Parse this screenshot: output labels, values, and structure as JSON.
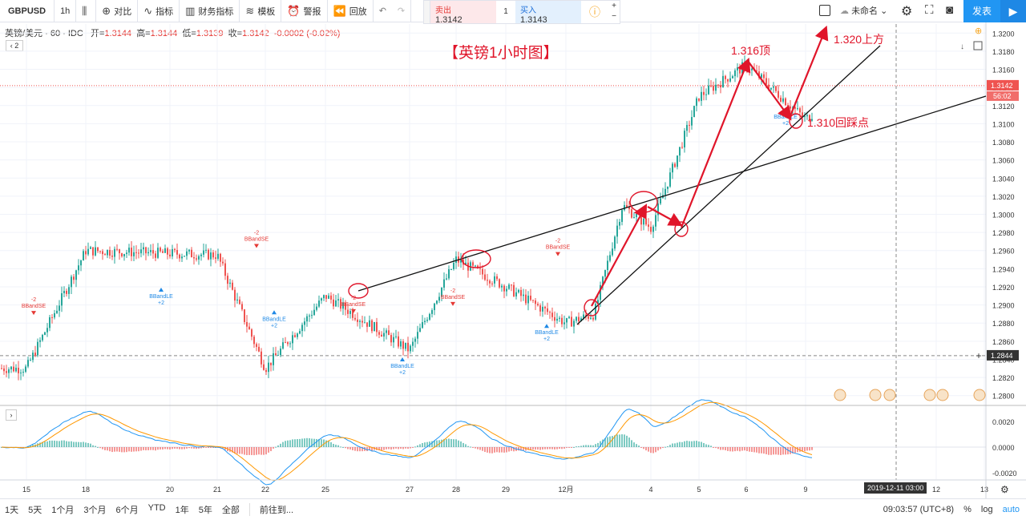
{
  "toolbar": {
    "symbol": "GBPUSD",
    "interval": "1h",
    "compare": "对比",
    "indicators": "指标",
    "financials": "财务指标",
    "templates": "模板",
    "alert": "警报",
    "replay": "回放",
    "sell_label": "卖出",
    "sell_price": "1.3142",
    "qty": "1",
    "buy_label": "买入",
    "buy_price": "1.3143",
    "layout_name": "未命名",
    "publish": "发表"
  },
  "legend": {
    "name": "英镑/美元 · 60 · IDC",
    "open_label": "开=",
    "open": "1.3144",
    "high_label": "高=",
    "high": "1.3144",
    "low_label": "低=",
    "low": "1.3139",
    "close_label": "收=",
    "close": "1.3142",
    "change": "-0.0002 (-0.02%)",
    "collapse": "2"
  },
  "annotations": {
    "title": "【英镑1小时图】",
    "top": "1.316顶",
    "target": "1.320上方",
    "pullback": "1.310回踩点"
  },
  "price_badges": {
    "last": "1.3142",
    "countdown": "56:02",
    "cross": "1.2844",
    "date_label": "2019-12-11",
    "time_label": "03:00"
  },
  "signals": [
    {
      "type": "BBandSE",
      "n": "-2"
    },
    {
      "type": "BBandLE",
      "n": "+2"
    }
  ],
  "bottombar": {
    "ranges": [
      "1天",
      "5天",
      "1个月",
      "3个月",
      "6个月",
      "YTD",
      "1年",
      "5年",
      "全部"
    ],
    "goto": "前往到...",
    "clock": "09:03:57 (UTC+8)",
    "pct": "%",
    "log": "log",
    "auto": "auto"
  },
  "colors": {
    "up": "#26a69a",
    "down": "#ef5350",
    "annotation": "#e0152a",
    "trend": "#111111",
    "macd": "#2196f3",
    "signal": "#ff9800"
  },
  "chart_data": {
    "type": "candlestick",
    "title": "【英镑1小时图】",
    "y_axis": {
      "ticks": [
        "1.2800",
        "1.2820",
        "1.2840",
        "1.2860",
        "1.2880",
        "1.2900",
        "1.2920",
        "1.2940",
        "1.2960",
        "1.2980",
        "1.3000",
        "1.3020",
        "1.3040",
        "1.3060",
        "1.3080",
        "1.3100",
        "1.3120",
        "1.3140",
        "1.3160",
        "1.3180",
        "1.3200"
      ],
      "range": [
        1.279,
        1.321
      ]
    },
    "x_axis": {
      "ticks": [
        "15",
        "18",
        "20",
        "21",
        "22",
        "25",
        "27",
        "28",
        "29",
        "12月",
        "4",
        "5",
        "6",
        "9",
        "12",
        "13"
      ]
    },
    "key_points": [
      {
        "x": "11-15",
        "y": 1.283
      },
      {
        "x": "11-18",
        "y": 1.296
      },
      {
        "x": "11-21",
        "y": 1.2955
      },
      {
        "x": "11-22",
        "y": 1.283
      },
      {
        "x": "11-25",
        "y": 1.291
      },
      {
        "x": "11-27",
        "y": 1.285
      },
      {
        "x": "11-28",
        "y": 1.295
      },
      {
        "x": "11-29",
        "y": 1.292
      },
      {
        "x": "12-01",
        "y": 1.288
      },
      {
        "x": "12-02",
        "y": 1.289
      },
      {
        "x": "12-03",
        "y": 1.301
      },
      {
        "x": "12-04",
        "y": 1.2985
      },
      {
        "x": "12-05",
        "y": 1.313
      },
      {
        "x": "12-06",
        "y": 1.3165
      },
      {
        "x": "12-09",
        "y": 1.3105
      },
      {
        "x": "12-10",
        "y": 1.3142
      }
    ],
    "macd": {
      "ticks": [
        "0.0020",
        "0.0000",
        "-0.0020"
      ],
      "range": [
        -0.0025,
        0.003
      ]
    }
  }
}
